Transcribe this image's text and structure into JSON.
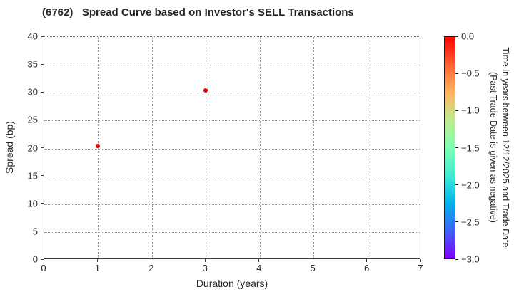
{
  "chart_data": {
    "type": "scatter",
    "title": "(6762)   Spread Curve based on Investor's SELL Transactions",
    "xlabel": "Duration (years)",
    "ylabel": "Spread (bp)",
    "xlim": [
      0,
      7
    ],
    "ylim": [
      0,
      40
    ],
    "xticks": [
      0,
      1,
      2,
      3,
      4,
      5,
      6,
      7
    ],
    "yticks": [
      0,
      5,
      10,
      15,
      20,
      25,
      30,
      35,
      40
    ],
    "grid": true,
    "grid_style": "dotted",
    "points": [
      {
        "x": 1.0,
        "y": 20.5,
        "time_value": 0.0
      },
      {
        "x": 3.0,
        "y": 30.4,
        "time_value": 0.0
      }
    ],
    "point_color": "#f40000",
    "colorbar": {
      "label_line1": "Time in years between 12/12/2025 and Trade Date",
      "label_line2": "(Past Trade Date is given as negative)",
      "tick_labels": [
        "0.0",
        "−0.5",
        "−1.0",
        "−1.5",
        "−2.0",
        "−2.5",
        "−3.0"
      ],
      "value_range": [
        0.0,
        -3.0
      ],
      "colormap": "rainbow",
      "gradient_stops_top_to_bottom": [
        "#ff0000",
        "#ff6232",
        "#ffb462",
        "#bfec8e",
        "#80ffb4",
        "#40ecd4",
        "#00b4ec",
        "#4062fa",
        "#8000ff"
      ]
    },
    "colors": {
      "text": "#262626",
      "spine": "#3c3c3c",
      "grid": "#9a9a9a",
      "background": "#ffffff"
    }
  }
}
